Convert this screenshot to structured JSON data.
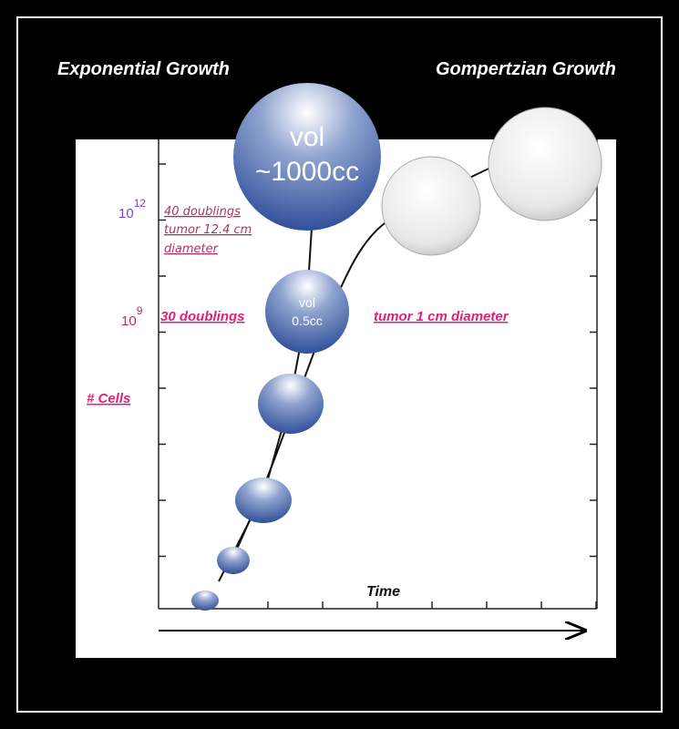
{
  "headings": {
    "left": "Exponential Growth",
    "right": "Gompertzian Growth"
  },
  "y_labels": [
    {
      "base": "10",
      "exponent": "12"
    },
    {
      "base": "10",
      "exponent": "9"
    }
  ],
  "annotations": {
    "doublings_40": [
      "40 doublings",
      "tumor 12.4 cm",
      "diameter"
    ],
    "doublings_30": "30 doublings",
    "tumor_1cm": "tumor 1 cm diameter"
  },
  "axis": {
    "y": "# Cells",
    "x": "Time"
  },
  "spheres": [
    {
      "lines": [
        "vol",
        "~1000cc"
      ]
    },
    {
      "lines": [
        "vol",
        "0.5cc"
      ]
    }
  ]
}
